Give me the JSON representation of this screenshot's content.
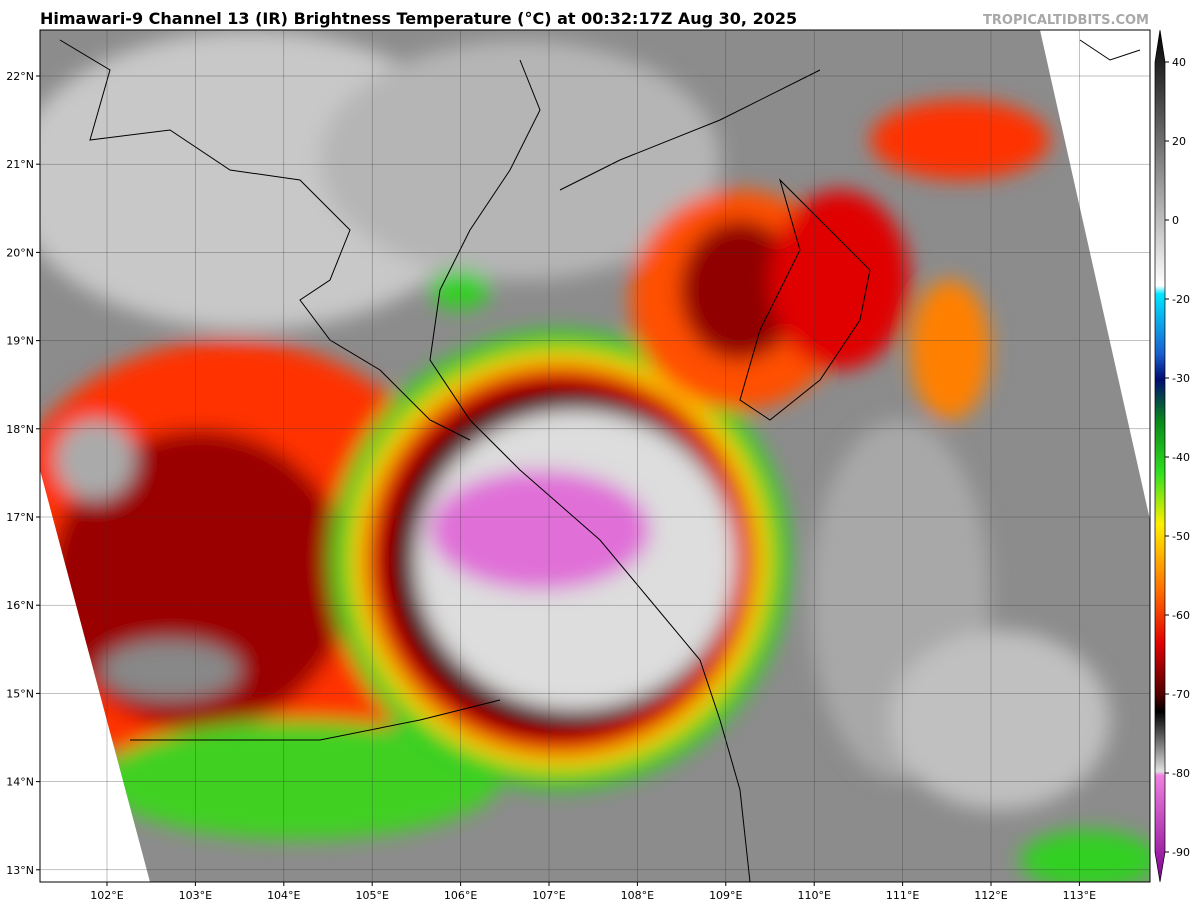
{
  "header": {
    "title": "Himawari-9 Channel 13 (IR) Brightness Temperature (°C) at 00:32:17Z Aug 30, 2025",
    "watermark": "TROPICALTIDBITS.COM"
  },
  "map": {
    "lat_labels": [
      "22°N",
      "21°N",
      "20°N",
      "19°N",
      "18°N",
      "17°N",
      "16°N",
      "15°N",
      "14°N",
      "13°N"
    ],
    "lon_labels": [
      "102°E",
      "103°E",
      "104°E",
      "105°E",
      "106°E",
      "107°E",
      "108°E",
      "109°E",
      "110°E",
      "111°E",
      "112°E",
      "113°E"
    ]
  },
  "colorbar": {
    "ticks": [
      40,
      20,
      0,
      -20,
      -30,
      -40,
      -50,
      -60,
      -70,
      -80,
      -90
    ]
  }
}
